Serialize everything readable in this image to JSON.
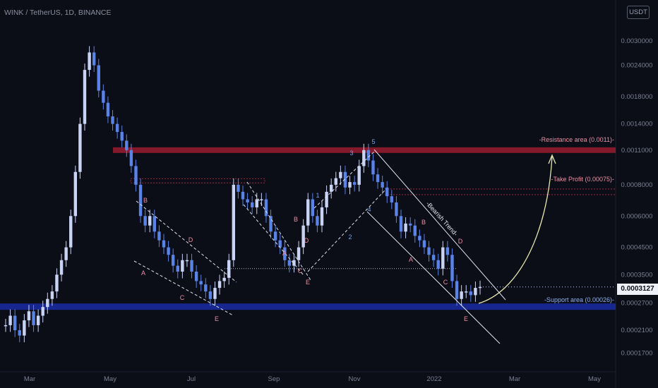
{
  "header": {
    "symbol": "WINK / TetherUS, 1D, BINANCE",
    "currency": "USDT"
  },
  "colors": {
    "background": "#0b0d17",
    "candle": "#5a83e8",
    "candle_light": "#c9d4f5",
    "resistance": "#8a1a2c",
    "support": "#1a2a9c",
    "label_pink": "#ee8fa3",
    "label_blue": "#6fa2f0",
    "curve": "#e8e8b0"
  },
  "chart_data": {
    "type": "line",
    "title": "WINK / TetherUS, 1D, BINANCE",
    "x_ticks": [
      "Mar",
      "May",
      "Jul",
      "Sep",
      "Nov",
      "2022",
      "Mar",
      "May"
    ],
    "y_ticks": [
      "0.0030000",
      "0.0024000",
      "0.0018000",
      "0.0014000",
      "0.0011000",
      "0.0008000",
      "0.0006000",
      "0.0004500",
      "0.0003500",
      "0.0002700",
      "0.0002100",
      "0.0001700"
    ],
    "y_scale": "log",
    "ylim": [
      0.00015,
      0.0036
    ],
    "current_price": "0.0003127",
    "series": [
      {
        "values": [
          0.00022,
          0.00024,
          0.00021,
          0.0002,
          0.00023,
          0.00025,
          0.00022,
          0.00024,
          0.00026,
          0.00028,
          0.0003,
          0.00035,
          0.0004,
          0.00045,
          0.0006,
          0.0009,
          0.0014,
          0.0023,
          0.0027,
          0.0024,
          0.0019,
          0.0017,
          0.0015,
          0.0014,
          0.0013,
          0.0012,
          0.0011,
          0.00095,
          0.0008,
          0.0006,
          0.00055,
          0.0006,
          0.00052,
          0.00048,
          0.00045,
          0.00042,
          0.00038,
          0.00036,
          0.0004,
          0.0004,
          0.00036,
          0.00033,
          0.00032,
          0.0003,
          0.00028,
          0.00031,
          0.00033,
          0.00034,
          0.0004,
          0.0008,
          0.00075,
          0.0007,
          0.00068,
          0.00065,
          0.0007,
          0.0007,
          0.0006,
          0.00052,
          0.00048,
          0.00045,
          0.0004,
          0.00038,
          0.0004,
          0.00045,
          0.00055,
          0.0007,
          0.0006,
          0.00055,
          0.00065,
          0.00075,
          0.0008,
          0.00085,
          0.0009,
          0.00078,
          0.00082,
          0.0008,
          0.00095,
          0.0011,
          0.001,
          0.00088,
          0.00082,
          0.00078,
          0.00072,
          0.00068,
          0.0006,
          0.00052,
          0.00056,
          0.00055,
          0.0005,
          0.00048,
          0.00045,
          0.00042,
          0.0004,
          0.00037,
          0.00045,
          0.00042,
          0.00033,
          0.00028,
          0.0003,
          0.0003,
          0.00029,
          0.00031,
          0.0003127
        ]
      }
    ]
  },
  "levels": [
    {
      "label": "-Resistance area (0.0011)-",
      "type": "resistance",
      "price": 0.0011
    },
    {
      "label": "-Take Profit (0.00075)-",
      "type": "target",
      "price": 0.00075
    },
    {
      "label": "-Support area (0.00026)-",
      "type": "support",
      "price": 0.00026
    }
  ],
  "wave_labels": [
    {
      "text": "A",
      "color": "label_pink",
      "wave": "wave-1"
    },
    {
      "text": "B",
      "color": "label_pink",
      "wave": "wave-1"
    },
    {
      "text": "C",
      "color": "label_pink",
      "wave": "wave-1"
    },
    {
      "text": "D",
      "color": "label_pink",
      "wave": "wave-1"
    },
    {
      "text": "E",
      "color": "label_pink",
      "wave": "wave-1"
    },
    {
      "text": "A",
      "color": "label_pink",
      "wave": "wave-2"
    },
    {
      "text": "B",
      "color": "label_pink",
      "wave": "wave-2"
    },
    {
      "text": "C",
      "color": "label_pink",
      "wave": "wave-2"
    },
    {
      "text": "D",
      "color": "label_pink",
      "wave": "wave-2"
    },
    {
      "text": "E",
      "color": "label_pink",
      "wave": "wave-2"
    },
    {
      "text": "1",
      "color": "label_blue",
      "wave": "impulse"
    },
    {
      "text": "2",
      "color": "label_blue",
      "wave": "impulse"
    },
    {
      "text": "3",
      "color": "label_blue",
      "wave": "impulse"
    },
    {
      "text": "4",
      "color": "label_blue",
      "wave": "impulse"
    },
    {
      "text": "5",
      "color": "label_blue",
      "wave": "impulse"
    },
    {
      "text": "A",
      "color": "label_pink",
      "wave": "wave-3"
    },
    {
      "text": "B",
      "color": "label_pink",
      "wave": "wave-3"
    },
    {
      "text": "C",
      "color": "label_pink",
      "wave": "wave-3"
    },
    {
      "text": "D",
      "color": "label_pink",
      "wave": "wave-3"
    },
    {
      "text": "E",
      "color": "label_pink",
      "wave": "wave-3"
    }
  ],
  "trend_label": "-Bearish Trend-"
}
